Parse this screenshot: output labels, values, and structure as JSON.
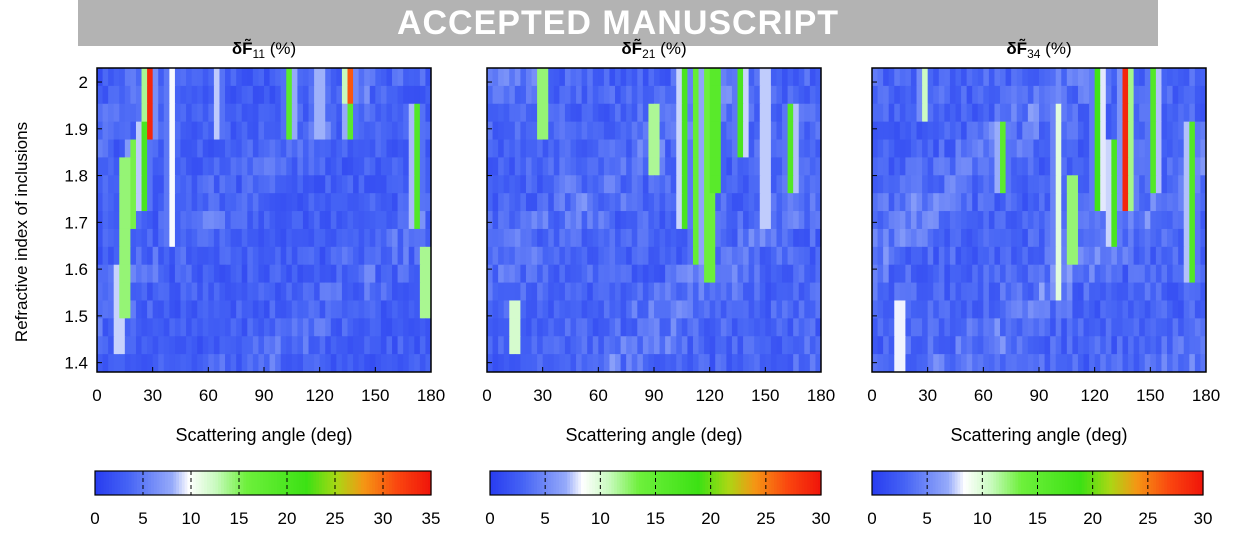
{
  "banner": {
    "text": "ACCEPTED MANUSCRIPT"
  },
  "ylabel": "Refractive index of inclusions",
  "chart_data": [
    {
      "type": "heatmap",
      "title": "δF̃11 (%)",
      "title_main": "δF̃",
      "title_sub": "11",
      "title_suffix": "(%)",
      "xlabel": "Scattering angle (deg)",
      "xlim": [
        0,
        180
      ],
      "xticks": [
        0,
        30,
        60,
        90,
        120,
        150,
        180
      ],
      "ylim": [
        1.38,
        2.03
      ],
      "yticks": [
        1.4,
        1.5,
        1.6,
        1.7,
        1.8,
        1.9,
        2
      ],
      "colorbar": {
        "min": 0,
        "max": 35,
        "ticks": [
          0,
          5,
          10,
          15,
          20,
          25,
          30,
          35
        ]
      },
      "features": [
        {
          "angle": 28,
          "n_low": 1.88,
          "n_high": 2.03,
          "value": 33
        },
        {
          "angle": 25,
          "n_low": 1.75,
          "n_high": 1.9,
          "value": 19
        },
        {
          "angle": 19,
          "n_low": 1.7,
          "n_high": 1.86,
          "value": 14
        },
        {
          "angle": 15,
          "n_low": 1.52,
          "n_high": 1.82,
          "value": 18
        },
        {
          "angle": 12,
          "n_low": 1.42,
          "n_high": 1.6,
          "value": 10
        },
        {
          "angle": 104,
          "n_low": 1.9,
          "n_high": 2.03,
          "value": 17
        },
        {
          "angle": 136,
          "n_low": 1.96,
          "n_high": 2.03,
          "value": 30
        },
        {
          "angle": 136,
          "n_low": 1.9,
          "n_high": 1.96,
          "value": 17
        },
        {
          "angle": 120,
          "n_low": 1.9,
          "n_high": 2.03,
          "value": 9
        },
        {
          "angle": 172,
          "n_low": 1.7,
          "n_high": 1.92,
          "value": 18
        },
        {
          "angle": 177,
          "n_low": 1.52,
          "n_high": 1.62,
          "value": 17
        },
        {
          "angle": 40,
          "n_low": 1.65,
          "n_high": 2.03,
          "value": 8
        },
        {
          "angle": 65,
          "n_low": 1.88,
          "n_high": 2.03,
          "value": 7
        }
      ]
    },
    {
      "type": "heatmap",
      "title": "δF̃21 (%)",
      "title_main": "δF̃",
      "title_sub": "21",
      "title_suffix": "(%)",
      "xlabel": "Scattering angle (deg)",
      "xlim": [
        0,
        180
      ],
      "xticks": [
        0,
        30,
        60,
        90,
        120,
        150,
        180
      ],
      "ylim": [
        1.38,
        2.03
      ],
      "yticks": [
        1.4,
        1.5,
        1.6,
        1.7,
        1.8,
        1.9,
        2
      ],
      "colorbar": {
        "min": 0,
        "max": 30,
        "ticks": [
          0,
          5,
          10,
          15,
          20,
          25,
          30
        ]
      },
      "features": [
        {
          "angle": 30,
          "n_low": 1.9,
          "n_high": 2.03,
          "value": 15
        },
        {
          "angle": 15,
          "n_low": 1.44,
          "n_high": 1.52,
          "value": 12
        },
        {
          "angle": 90,
          "n_low": 1.82,
          "n_high": 1.92,
          "value": 14
        },
        {
          "angle": 106,
          "n_low": 1.7,
          "n_high": 2.03,
          "value": 16
        },
        {
          "angle": 113,
          "n_low": 1.62,
          "n_high": 2.03,
          "value": 13
        },
        {
          "angle": 120,
          "n_low": 1.58,
          "n_high": 2.03,
          "value": 17
        },
        {
          "angle": 123,
          "n_low": 1.8,
          "n_high": 2.03,
          "value": 20
        },
        {
          "angle": 137,
          "n_low": 1.85,
          "n_high": 2.03,
          "value": 16
        },
        {
          "angle": 164,
          "n_low": 1.78,
          "n_high": 1.92,
          "value": 15
        },
        {
          "angle": 150,
          "n_low": 1.7,
          "n_high": 2.03,
          "value": 8
        }
      ]
    },
    {
      "type": "heatmap",
      "title": "δF̃34 (%)",
      "title_main": "δF̃",
      "title_sub": "34",
      "title_suffix": "(%)",
      "xlabel": "Scattering angle (deg)",
      "xlim": [
        0,
        180
      ],
      "xticks": [
        0,
        30,
        60,
        90,
        120,
        150,
        180
      ],
      "ylim": [
        1.38,
        2.03
      ],
      "yticks": [
        1.4,
        1.5,
        1.6,
        1.7,
        1.8,
        1.9,
        2
      ],
      "colorbar": {
        "min": 0,
        "max": 30,
        "ticks": [
          0,
          5,
          10,
          15,
          20,
          25,
          30
        ]
      },
      "features": [
        {
          "angle": 137,
          "n_low": 1.75,
          "n_high": 2.03,
          "value": 28
        },
        {
          "angle": 130,
          "n_low": 1.65,
          "n_high": 1.85,
          "value": 16
        },
        {
          "angle": 122,
          "n_low": 1.75,
          "n_high": 2.03,
          "value": 17
        },
        {
          "angle": 152,
          "n_low": 1.8,
          "n_high": 2.03,
          "value": 15
        },
        {
          "angle": 172,
          "n_low": 1.58,
          "n_high": 1.88,
          "value": 15
        },
        {
          "angle": 108,
          "n_low": 1.62,
          "n_high": 1.78,
          "value": 15
        },
        {
          "angle": 70,
          "n_low": 1.78,
          "n_high": 1.88,
          "value": 14
        },
        {
          "angle": 15,
          "n_low": 1.4,
          "n_high": 1.52,
          "value": 9
        },
        {
          "angle": 28,
          "n_low": 1.95,
          "n_high": 2.03,
          "value": 9
        },
        {
          "angle": 100,
          "n_low": 1.55,
          "n_high": 1.95,
          "value": 8
        }
      ]
    }
  ]
}
